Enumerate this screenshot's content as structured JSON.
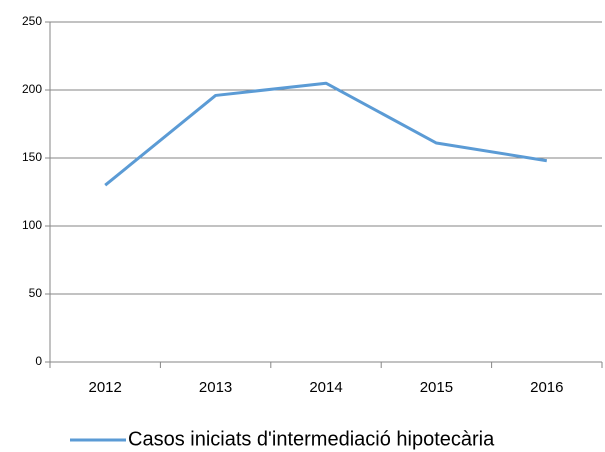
{
  "chart_data": {
    "type": "line",
    "categories": [
      "2012",
      "2013",
      "2014",
      "2015",
      "2016"
    ],
    "series": [
      {
        "name": "Casos iniciats d'intermediació hipotecària",
        "color": "#5b9bd5",
        "values": [
          130,
          196,
          205,
          161,
          148
        ]
      }
    ],
    "ylim": [
      0,
      250
    ],
    "yticks": [
      0,
      50,
      100,
      150,
      200,
      250
    ],
    "grid": true,
    "legend": "bottom"
  }
}
